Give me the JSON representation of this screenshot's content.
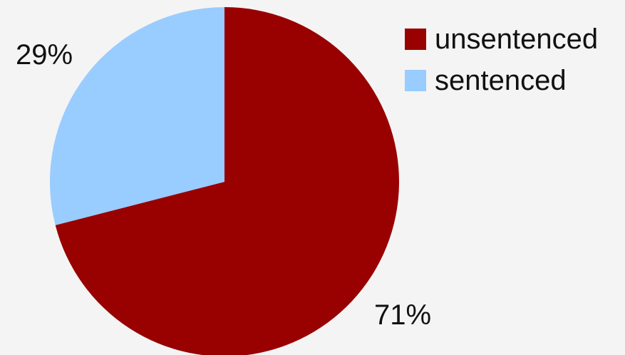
{
  "chart_data": {
    "type": "pie",
    "categories": [
      "unsentenced",
      "sentenced"
    ],
    "values": [
      71,
      29
    ],
    "data_labels": [
      "71%",
      "29%"
    ],
    "colors": [
      "#990000",
      "#99ccff"
    ],
    "start_angle_deg": 0,
    "direction": "clockwise",
    "legend_position": "top-right"
  }
}
